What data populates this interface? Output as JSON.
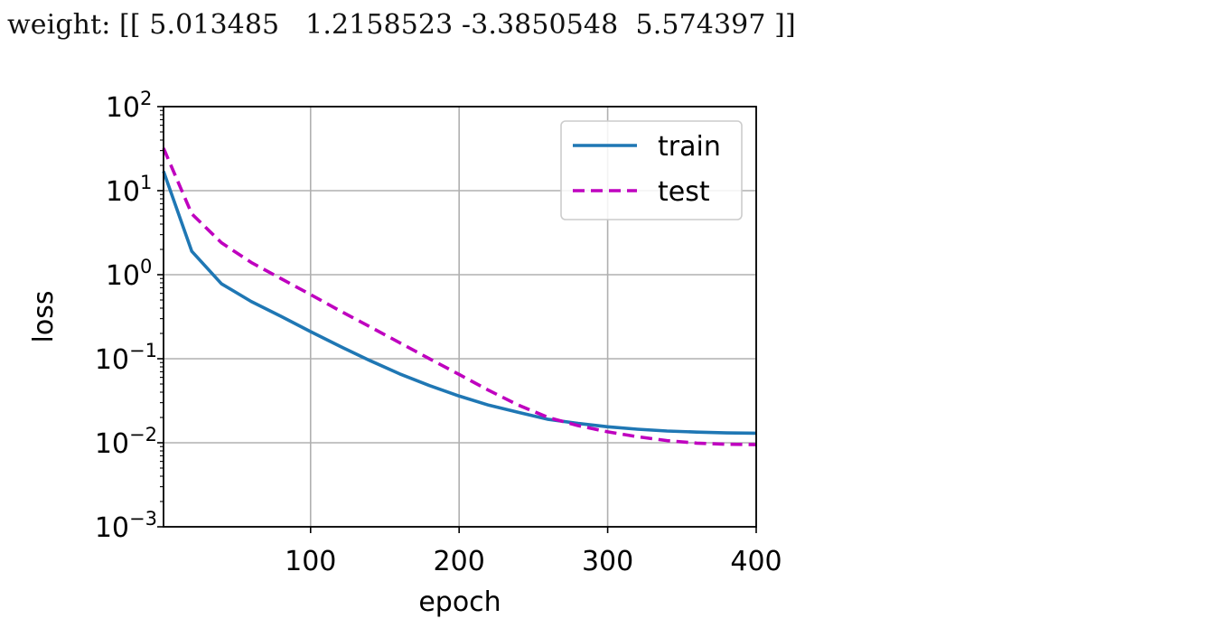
{
  "output": {
    "weight_text": "weight: [[ 5.013485   1.2158523 -3.3850548  5.574397 ]]"
  },
  "chart_data": {
    "type": "line",
    "title": "",
    "xlabel": "epoch",
    "ylabel": "loss",
    "xlim": [
      1,
      400
    ],
    "ylim": [
      0.001,
      100
    ],
    "yscale": "log",
    "grid": true,
    "legend_position": "upper-right",
    "x_ticks": [
      100,
      200,
      300,
      400
    ],
    "x_tick_labels": [
      "100",
      "200",
      "300",
      "400"
    ],
    "y_ticks": [
      {
        "value": 100,
        "base": "10",
        "exp": "2"
      },
      {
        "value": 10,
        "base": "10",
        "exp": "1"
      },
      {
        "value": 1,
        "base": "10",
        "exp": "0"
      },
      {
        "value": 0.1,
        "base": "10",
        "exp": "−1"
      },
      {
        "value": 0.01,
        "base": "10",
        "exp": "−2"
      },
      {
        "value": 0.001,
        "base": "10",
        "exp": "−3"
      }
    ],
    "x": [
      1,
      20,
      40,
      60,
      80,
      100,
      120,
      140,
      160,
      180,
      200,
      220,
      240,
      260,
      280,
      300,
      320,
      340,
      360,
      380,
      400
    ],
    "series": [
      {
        "name": "train",
        "color": "#1f77b4",
        "dash": "solid",
        "values": [
          17,
          1.9,
          0.78,
          0.48,
          0.32,
          0.21,
          0.14,
          0.095,
          0.066,
          0.048,
          0.036,
          0.028,
          0.023,
          0.019,
          0.017,
          0.0155,
          0.0145,
          0.0138,
          0.0134,
          0.0131,
          0.013
        ]
      },
      {
        "name": "test",
        "color": "#bf00bf",
        "dash": "dashed",
        "values": [
          32,
          5.3,
          2.4,
          1.4,
          0.9,
          0.58,
          0.37,
          0.24,
          0.155,
          0.1,
          0.065,
          0.042,
          0.028,
          0.02,
          0.016,
          0.0135,
          0.0118,
          0.0106,
          0.0099,
          0.0096,
          0.0095
        ]
      }
    ]
  }
}
